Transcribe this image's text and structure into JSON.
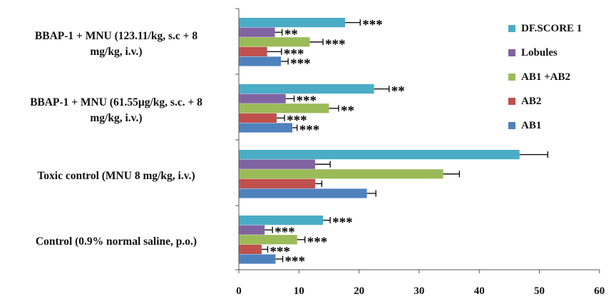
{
  "chart_data": {
    "type": "bar",
    "orientation": "horizontal",
    "title": "",
    "xlabel": "",
    "ylabel": "",
    "xlim": [
      0,
      60
    ],
    "x_ticks": [
      "0",
      "10",
      "20",
      "30",
      "40",
      "50",
      "60"
    ],
    "grid": false,
    "legend_position": "right",
    "categories": [
      "BBAP-1 + MNU (123.11/kg, s.c + 8\nmg/kg, i.v.)",
      "BBAP-1 + MNU (61.55µg/kg, s.c. + 8\nmg/kg, i.v.)",
      "Toxic control  (MNU 8 mg/kg, i.v.)",
      "Control (0.9% normal saline, p.o.)"
    ],
    "series": [
      {
        "name": "DF.SCORE 1",
        "color": "#4bacc6",
        "values": [
          17.7,
          22.5,
          46.7,
          14.0
        ],
        "errors": [
          2.5,
          2.5,
          4.7,
          1.2
        ],
        "significance": [
          "***",
          "**",
          "",
          "***"
        ]
      },
      {
        "name": "Lobules",
        "color": "#8064a2",
        "values": [
          6.0,
          7.8,
          12.7,
          4.3
        ],
        "errors": [
          1.2,
          1.4,
          2.5,
          1.3
        ],
        "significance": [
          "**",
          "***",
          "",
          "***"
        ]
      },
      {
        "name": "AB1 +AB2",
        "color": "#9bbb59",
        "values": [
          11.8,
          15.0,
          34.0,
          9.7
        ],
        "errors": [
          2.2,
          1.6,
          2.7,
          1.3
        ],
        "significance": [
          "***",
          "**",
          "",
          "***"
        ]
      },
      {
        "name": "AB2",
        "color": "#c0504d",
        "values": [
          4.7,
          6.3,
          12.7,
          3.8
        ],
        "errors": [
          2.4,
          1.3,
          1.1,
          1.0
        ],
        "significance": [
          "***",
          "***",
          "",
          "***"
        ]
      },
      {
        "name": "AB1",
        "color": "#4f81bd",
        "values": [
          7.0,
          8.9,
          21.3,
          6.1
        ],
        "errors": [
          1.2,
          0.8,
          1.5,
          1.2
        ],
        "significance": [
          "***",
          "***",
          "",
          "***"
        ]
      }
    ]
  }
}
